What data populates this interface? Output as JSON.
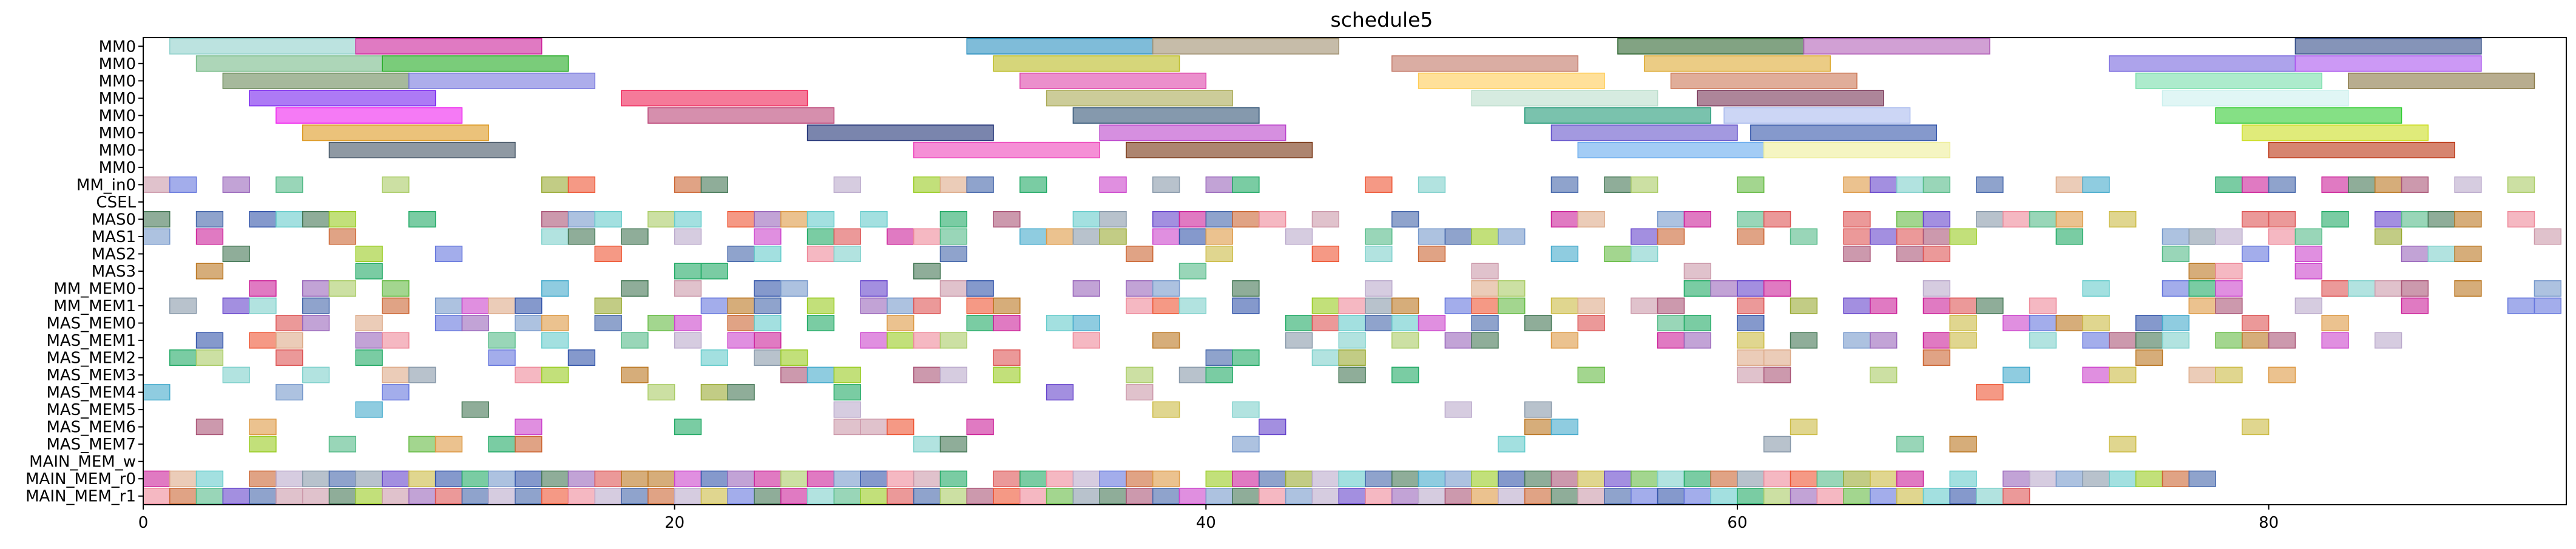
{
  "chart_data": {
    "type": "gantt",
    "title": "schedule5",
    "xlabel": "",
    "ylabel": "",
    "xlim": [
      0,
      91.2
    ],
    "xticks": [
      0,
      20,
      40,
      60,
      80
    ],
    "grid": false,
    "rows": [
      "MM0",
      "MM0",
      "MM0",
      "MM0",
      "MM0",
      "MM0",
      "MM0",
      "MM0",
      "MM_in0",
      "CSEL",
      "MAS0",
      "MAS1",
      "MAS2",
      "MAS3",
      "MM_MEM0",
      "MM_MEM1",
      "MAS_MEM0",
      "MAS_MEM1",
      "MAS_MEM2",
      "MAS_MEM3",
      "MAS_MEM4",
      "MAS_MEM5",
      "MAS_MEM6",
      "MAS_MEM7",
      "MAIN_MEM_w",
      "MAIN_MEM_r0",
      "MAIN_MEM_r1"
    ],
    "palette": [
      "#7fd1cc",
      "#cc2299",
      "#7799cc",
      "#cc6633",
      "#99cc22",
      "#6644cc",
      "#22aa66",
      "#cc99aa",
      "#aacc66",
      "#4466aa",
      "#ee8899",
      "#66cccc",
      "#bb7722",
      "#9966bb",
      "#dd5555",
      "#55bb88",
      "#ccbb44",
      "#8899aa",
      "#aa5577",
      "#44aacc",
      "#cc44cc",
      "#99aa33",
      "#6677dd",
      "#dd9944",
      "#447755",
      "#bbaacc",
      "#ee5533",
      "#66bb44",
      "#3355aa",
      "#ddaa88"
    ],
    "bars": [
      {
        "row": 0,
        "start": 1,
        "end": 8,
        "color": "#8fd1cc"
      },
      {
        "row": 0,
        "start": 8,
        "end": 15,
        "color": "#cc2299"
      },
      {
        "row": 0,
        "start": 31,
        "end": 38,
        "color": "#2a8fbf"
      },
      {
        "row": 0,
        "start": 38,
        "end": 45,
        "color": "#a09070"
      },
      {
        "row": 0,
        "start": 55.5,
        "end": 62.5,
        "color": "#2e6630"
      },
      {
        "row": 0,
        "start": 62.5,
        "end": 69.5,
        "color": "#b260b8"
      },
      {
        "row": 0,
        "start": 81,
        "end": 88,
        "color": "#334d88"
      },
      {
        "row": 1,
        "start": 2,
        "end": 9,
        "color": "#77bb88"
      },
      {
        "row": 1,
        "start": 9,
        "end": 16,
        "color": "#22aa22"
      },
      {
        "row": 1,
        "start": 32,
        "end": 39,
        "color": "#bbbb22"
      },
      {
        "row": 1,
        "start": 47,
        "end": 54,
        "color": "#c27766"
      },
      {
        "row": 1,
        "start": 56.5,
        "end": 63.5,
        "color": "#ddaa33"
      },
      {
        "row": 1,
        "start": 74,
        "end": 81,
        "color": "#7766dd"
      },
      {
        "row": 1,
        "start": 81,
        "end": 88,
        "color": "#aa55ee"
      },
      {
        "row": 2,
        "start": 3,
        "end": 10,
        "color": "#6b8a5a"
      },
      {
        "row": 2,
        "start": 10,
        "end": 17,
        "color": "#7777dd"
      },
      {
        "row": 2,
        "start": 33,
        "end": 40,
        "color": "#dd44aa"
      },
      {
        "row": 2,
        "start": 48,
        "end": 55,
        "color": "#ffcc55"
      },
      {
        "row": 2,
        "start": 57.5,
        "end": 64.5,
        "color": "#cc7755"
      },
      {
        "row": 2,
        "start": 75,
        "end": 82,
        "color": "#77ddaa"
      },
      {
        "row": 2,
        "start": 83,
        "end": 90,
        "color": "#887744"
      },
      {
        "row": 3,
        "start": 4,
        "end": 11,
        "color": "#7722ee"
      },
      {
        "row": 3,
        "start": 18,
        "end": 25,
        "color": "#ee2255"
      },
      {
        "row": 3,
        "start": 34,
        "end": 41,
        "color": "#aaaa55"
      },
      {
        "row": 3,
        "start": 50,
        "end": 57,
        "color": "#bbddcc"
      },
      {
        "row": 3,
        "start": 58.5,
        "end": 65.5,
        "color": "#773355"
      },
      {
        "row": 3,
        "start": 76,
        "end": 83,
        "color": "#ccf0ee"
      },
      {
        "row": 4,
        "start": 5,
        "end": 12,
        "color": "#ee22ee"
      },
      {
        "row": 4,
        "start": 19,
        "end": 26,
        "color": "#bb4477"
      },
      {
        "row": 4,
        "start": 35,
        "end": 42,
        "color": "#335577"
      },
      {
        "row": 4,
        "start": 52,
        "end": 59,
        "color": "#229977"
      },
      {
        "row": 4,
        "start": 59.5,
        "end": 66.5,
        "color": "#aabbee"
      },
      {
        "row": 4,
        "start": 78,
        "end": 85,
        "color": "#33cc33"
      },
      {
        "row": 5,
        "start": 6,
        "end": 13,
        "color": "#dd9922"
      },
      {
        "row": 5,
        "start": 25,
        "end": 32,
        "color": "#223377"
      },
      {
        "row": 5,
        "start": 36,
        "end": 43,
        "color": "#bb44cc"
      },
      {
        "row": 5,
        "start": 53,
        "end": 60,
        "color": "#6655cc"
      },
      {
        "row": 5,
        "start": 60.5,
        "end": 67.5,
        "color": "#3355aa"
      },
      {
        "row": 5,
        "start": 79,
        "end": 86,
        "color": "#ccdd22"
      },
      {
        "row": 6,
        "start": 7,
        "end": 14,
        "color": "#445566"
      },
      {
        "row": 6,
        "start": 29,
        "end": 36,
        "color": "#ee44bb"
      },
      {
        "row": 6,
        "start": 37,
        "end": 44,
        "color": "#773311"
      },
      {
        "row": 6,
        "start": 54,
        "end": 61,
        "color": "#66aaee"
      },
      {
        "row": 6,
        "start": 61,
        "end": 68,
        "color": "#eeee99"
      },
      {
        "row": 6,
        "start": 80,
        "end": 87,
        "color": "#bb3311"
      }
    ],
    "cells": [
      [
        "#88bbdd",
        null,
        "#9966bb",
        "#ccddee",
        "#99bbcc",
        "#aa88ee",
        "#ccaadd",
        "#44aa88",
        "#ee9966",
        "#446644"
      ],
      [],
      []
    ]
  }
}
